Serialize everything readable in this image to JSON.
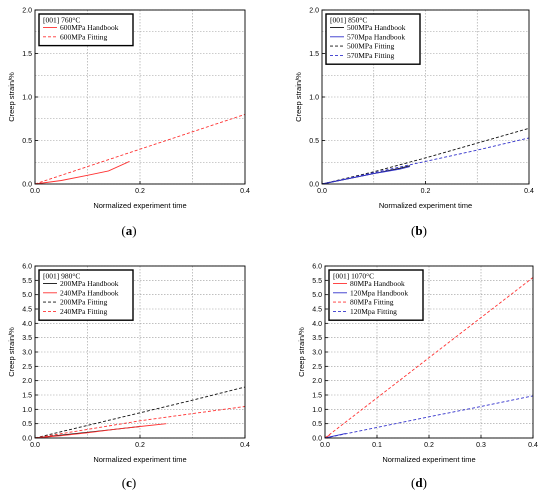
{
  "chart_data": [
    {
      "type": "line",
      "panel_label": "(a)",
      "panel_letter": "a",
      "legend_title": "[001] 760°C",
      "xlabel": "Normalized experiment time",
      "ylabel": "Creep strain/%",
      "xlim": [
        0,
        0.4
      ],
      "ylim": [
        0,
        2.0
      ],
      "xticks": [
        0,
        0.2,
        0.4
      ],
      "xtick_labels": [
        "0.0",
        "0.2",
        "0.4"
      ],
      "yticks": [
        0,
        0.5,
        1.0,
        1.5,
        2.0
      ],
      "ytick_labels": [
        "0.0",
        "0.5",
        "1.0",
        "1.5",
        "2.0"
      ],
      "ygrid": [
        0,
        0.25,
        0.5,
        0.75,
        1.0,
        1.25,
        1.5,
        1.75,
        2.0
      ],
      "xgrid": [
        0.1,
        0.2,
        0.3
      ],
      "grid": true,
      "legend_position": "top-left",
      "series": [
        {
          "name": "600MPa Handbook",
          "color": "#ff3333",
          "dash": "solid",
          "x": [
            0,
            0.05,
            0.1,
            0.14,
            0.18
          ],
          "y": [
            0,
            0.04,
            0.1,
            0.15,
            0.26
          ]
        },
        {
          "name": "600MPa Fitting",
          "color": "#ff3333",
          "dash": "dashed",
          "x": [
            0,
            0.1,
            0.2,
            0.3,
            0.4
          ],
          "y": [
            0,
            0.2,
            0.4,
            0.6,
            0.8
          ]
        }
      ]
    },
    {
      "type": "line",
      "panel_label": "(b)",
      "panel_letter": "b",
      "legend_title": "[001] 850°C",
      "xlabel": "Normalized experiment time",
      "ylabel": "Creep strain/%",
      "xlim": [
        0,
        0.4
      ],
      "ylim": [
        0,
        2.0
      ],
      "xticks": [
        0,
        0.2,
        0.4
      ],
      "xtick_labels": [
        "0.0",
        "0.2",
        "0.4"
      ],
      "yticks": [
        0,
        0.5,
        1.0,
        1.5,
        2.0
      ],
      "ytick_labels": [
        "0.0",
        "0.5",
        "1.0",
        "1.5",
        "2.0"
      ],
      "ygrid": [
        0,
        0.25,
        0.5,
        0.75,
        1.0,
        1.25,
        1.5,
        1.75,
        2.0
      ],
      "xgrid": [
        0.1,
        0.2,
        0.3
      ],
      "grid": true,
      "legend_position": "top-left",
      "series": [
        {
          "name": "500MPa Handbook",
          "color": "#111111",
          "dash": "solid",
          "x": [
            0,
            0.05,
            0.1,
            0.15,
            0.17
          ],
          "y": [
            0,
            0.06,
            0.12,
            0.18,
            0.21
          ]
        },
        {
          "name": "570Mpa Handbook",
          "color": "#3333cc",
          "dash": "solid",
          "x": [
            0,
            0.05,
            0.1,
            0.15,
            0.17
          ],
          "y": [
            0,
            0.06,
            0.12,
            0.17,
            0.2
          ]
        },
        {
          "name": "500MPa Fitting",
          "color": "#111111",
          "dash": "dashed",
          "x": [
            0,
            0.1,
            0.2,
            0.3,
            0.4
          ],
          "y": [
            0,
            0.14,
            0.3,
            0.47,
            0.64
          ]
        },
        {
          "name": "570MPa Fitting",
          "color": "#3333cc",
          "dash": "dashed",
          "x": [
            0,
            0.1,
            0.2,
            0.3,
            0.4
          ],
          "y": [
            0,
            0.13,
            0.26,
            0.39,
            0.53
          ]
        }
      ]
    },
    {
      "type": "line",
      "panel_label": "(c)",
      "panel_letter": "c",
      "legend_title": "[001] 980°C",
      "xlabel": "Normalized experiment time",
      "ylabel": "Creep strain/%",
      "xlim": [
        0,
        0.4
      ],
      "ylim": [
        0,
        6.0
      ],
      "xticks": [
        0,
        0.2,
        0.4
      ],
      "xtick_labels": [
        "0.0",
        "0.2",
        "0.4"
      ],
      "yticks": [
        0,
        0.5,
        1.0,
        1.5,
        2.0,
        2.5,
        3.0,
        3.5,
        4.0,
        4.5,
        5.0,
        5.5,
        6.0
      ],
      "ytick_labels": [
        "0.0",
        "0.5",
        "1.0",
        "1.5",
        "2.0",
        "2.5",
        "3.0",
        "3.5",
        "4.0",
        "4.5",
        "5.0",
        "5.5",
        "6.0"
      ],
      "ygrid": [
        0,
        0.5,
        1.0,
        1.5,
        2.0,
        2.5,
        3.0,
        3.5,
        4.0,
        4.5,
        5.0,
        5.5,
        6.0
      ],
      "xgrid": [
        0.1,
        0.2,
        0.3
      ],
      "grid": true,
      "legend_position": "top-left",
      "series": [
        {
          "name": "200MPa Handbook",
          "color": "#111111",
          "dash": "solid",
          "x": [
            0,
            0.05,
            0.1,
            0.15,
            0.2
          ],
          "y": [
            0,
            0.1,
            0.2,
            0.3,
            0.4
          ]
        },
        {
          "name": "240MPa Handbook",
          "color": "#ff3333",
          "dash": "solid",
          "x": [
            0,
            0.05,
            0.1,
            0.15,
            0.2,
            0.25
          ],
          "y": [
            0,
            0.08,
            0.18,
            0.3,
            0.4,
            0.5
          ]
        },
        {
          "name": "200MPa Fitting",
          "color": "#111111",
          "dash": "dashed",
          "x": [
            0,
            0.1,
            0.2,
            0.3,
            0.4
          ],
          "y": [
            0,
            0.44,
            0.88,
            1.32,
            1.78
          ]
        },
        {
          "name": "240MPa Fitting",
          "color": "#ff3333",
          "dash": "dashed",
          "x": [
            0,
            0.1,
            0.2,
            0.3,
            0.4
          ],
          "y": [
            0,
            0.3,
            0.6,
            0.85,
            1.1
          ]
        }
      ]
    },
    {
      "type": "line",
      "panel_label": "(d)",
      "panel_letter": "d",
      "legend_title": "[001] 1070°C",
      "xlabel": "Normalized experiment time",
      "ylabel": "Creep strain/%",
      "xlim": [
        0,
        0.4
      ],
      "ylim": [
        0,
        6.0
      ],
      "xticks": [
        0,
        0.1,
        0.2,
        0.3,
        0.4
      ],
      "xtick_labels": [
        "0.0",
        "0.1",
        "0.2",
        "0.3",
        "0.4"
      ],
      "yticks": [
        0,
        0.5,
        1.0,
        1.5,
        2.0,
        2.5,
        3.0,
        3.5,
        4.0,
        4.5,
        5.0,
        5.5,
        6.0
      ],
      "ytick_labels": [
        "0.0",
        "0.5",
        "1.0",
        "1.5",
        "2.0",
        "2.5",
        "3.0",
        "3.5",
        "4.0",
        "4.5",
        "5.0",
        "5.5",
        "6.0"
      ],
      "ygrid": [
        0,
        0.5,
        1.0,
        1.5,
        2.0,
        2.5,
        3.0,
        3.5,
        4.0,
        4.5,
        5.0,
        5.5,
        6.0
      ],
      "xgrid": [
        0.1,
        0.2,
        0.3
      ],
      "grid": true,
      "legend_position": "top-left",
      "series": [
        {
          "name": "80MPa Handbook",
          "color": "#ff3333",
          "dash": "solid",
          "x": [
            0,
            0.01
          ],
          "y": [
            0,
            0.12
          ]
        },
        {
          "name": "120Mpa Handbook",
          "color": "#3333cc",
          "dash": "solid",
          "x": [
            0,
            0.02,
            0.04
          ],
          "y": [
            0,
            0.08,
            0.16
          ]
        },
        {
          "name": "80MPa Fitting",
          "color": "#ff3333",
          "dash": "dashed",
          "x": [
            0,
            0.1,
            0.2,
            0.3,
            0.4
          ],
          "y": [
            0,
            1.4,
            2.8,
            4.2,
            5.6
          ]
        },
        {
          "name": "120Mpa Fitting",
          "color": "#3333cc",
          "dash": "dashed",
          "x": [
            0,
            0.1,
            0.2,
            0.3,
            0.4
          ],
          "y": [
            0,
            0.37,
            0.74,
            1.1,
            1.47
          ]
        }
      ]
    }
  ]
}
